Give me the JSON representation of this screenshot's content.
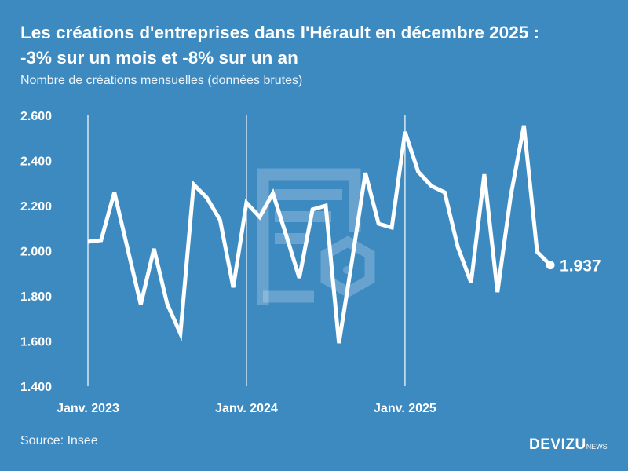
{
  "title_line1": "Les créations d'entreprises dans l'Hérault en décembre 2025 :",
  "title_line2": "-3% sur un mois et -8% sur un an",
  "subtitle": "Nombre de créations mensuelles (données brutes)",
  "source": "Source: Insee",
  "logo": {
    "main": "DEVIZU",
    "suffix": "NEWS"
  },
  "colors": {
    "background": "#3d8ac0",
    "line": "#ffffff"
  },
  "chart_data": {
    "type": "line",
    "title": "Les créations d'entreprises dans l'Hérault en décembre 2025 : -3% sur un mois et -8% sur un an",
    "subtitle": "Nombre de créations mensuelles (données brutes)",
    "ylim": [
      1400,
      2600
    ],
    "yticks": [
      1400,
      1600,
      1800,
      2000,
      2200,
      2400,
      2600
    ],
    "ytick_labels": [
      "1.400",
      "1.600",
      "1.800",
      "2.000",
      "2.200",
      "2.400",
      "2.600"
    ],
    "xtick_labels": [
      "Janv. 2023",
      "Janv. 2024",
      "Janv. 2025"
    ],
    "x_start": "2023-01",
    "grid": "vertical lines at January",
    "last_label": "1.937",
    "values": [
      2040,
      2047,
      2259,
      2010,
      1762,
      2009,
      1765,
      1633,
      2294,
      2235,
      2137,
      1838,
      2213,
      2150,
      2255,
      2070,
      1880,
      2183,
      2200,
      1591,
      1960,
      2345,
      2120,
      2103,
      2527,
      2350,
      2287,
      2259,
      2016,
      1859,
      2339,
      1817,
      2242,
      2555,
      1995,
      1937
    ]
  }
}
